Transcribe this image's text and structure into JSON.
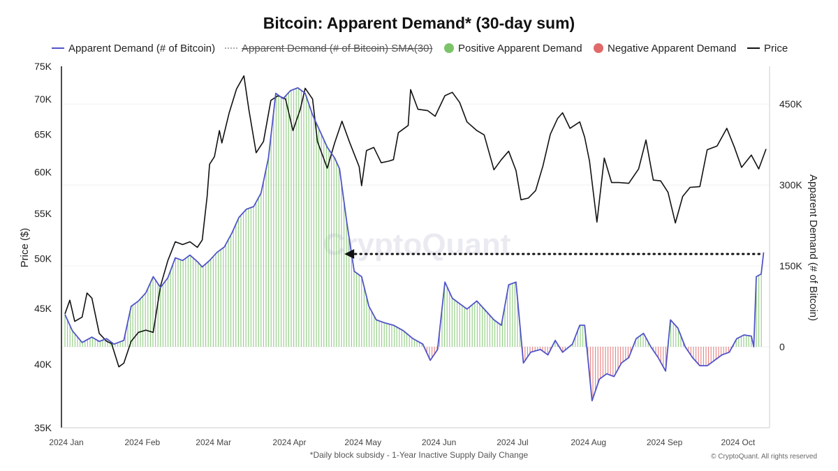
{
  "title": "Bitcoin: Apparent Demand* (30-day sum)",
  "legend": [
    {
      "label": "Apparent Demand (# of Bitcoin)",
      "kind": "line",
      "color": "#5154c8",
      "struck": false
    },
    {
      "label": "Apparent Demand (# of Bitcoin)  SMA(30)",
      "kind": "dashed",
      "color": "#aaaaaa",
      "struck": true
    },
    {
      "label": "Positive Apparent Demand",
      "kind": "dot",
      "color": "#7bc46a",
      "struck": false
    },
    {
      "label": "Negative Apparent Demand",
      "kind": "dot",
      "color": "#e06a6a",
      "struck": false
    },
    {
      "label": "Price",
      "kind": "line",
      "color": "#111111",
      "struck": false
    }
  ],
  "footnote": "*Daily block subsidy - 1-Year Inactive Supply Daily Change",
  "copyright": "© CryptoQuant. All rights reserved",
  "watermark": "CryptoQuant",
  "chart_data": {
    "type": "line",
    "title": "Bitcoin: Apparent Demand* (30-day sum)",
    "xlabel": "",
    "ylabel_left": "Price ($)",
    "ylabel_right": "Apparent Demand (# of Bitcoin)",
    "x_ticks": [
      "2024 Jan",
      "2024 Feb",
      "2024 Mar",
      "2024 Apr",
      "2024 May",
      "2024 Jun",
      "2024 Jul",
      "2024 Aug",
      "2024 Sep",
      "2024 Oct"
    ],
    "x_tick_dates": [
      "2024-01-01",
      "2024-02-01",
      "2024-03-01",
      "2024-04-01",
      "2024-05-01",
      "2024-06-01",
      "2024-07-01",
      "2024-08-01",
      "2024-09-01",
      "2024-10-01"
    ],
    "left_axis": {
      "scale": "log",
      "range": [
        35000,
        75000
      ],
      "tick_values": [
        35000,
        40000,
        45000,
        50000,
        55000,
        60000,
        65000,
        70000,
        75000
      ],
      "tick_labels": [
        "35K",
        "40K",
        "45K",
        "50K",
        "55K",
        "60K",
        "65K",
        "70K",
        "75K"
      ]
    },
    "right_axis": {
      "scale": "linear",
      "range": [
        -150000,
        520000
      ],
      "tick_values": [
        0,
        150000,
        300000,
        450000
      ],
      "tick_labels": [
        "0",
        "150K",
        "300K",
        "450K"
      ]
    },
    "grid": true,
    "legend_position": "top",
    "annotation": {
      "type": "dotted-arrow",
      "from": "2024-10-12",
      "to": "2024-04-24",
      "y_right": 172000
    },
    "series": [
      {
        "name": "Price",
        "axis": "left",
        "color": "#111111",
        "points": [
          [
            "2024-01-01",
            44500
          ],
          [
            "2024-01-03",
            45800
          ],
          [
            "2024-01-05",
            43800
          ],
          [
            "2024-01-08",
            44200
          ],
          [
            "2024-01-10",
            46500
          ],
          [
            "2024-01-12",
            46000
          ],
          [
            "2024-01-15",
            42700
          ],
          [
            "2024-01-18",
            42000
          ],
          [
            "2024-01-20",
            41800
          ],
          [
            "2024-01-23",
            39800
          ],
          [
            "2024-01-25",
            40100
          ],
          [
            "2024-01-28",
            42000
          ],
          [
            "2024-01-31",
            42800
          ],
          [
            "2024-02-03",
            43000
          ],
          [
            "2024-02-06",
            42800
          ],
          [
            "2024-02-09",
            47200
          ],
          [
            "2024-02-12",
            49800
          ],
          [
            "2024-02-15",
            51800
          ],
          [
            "2024-02-18",
            51500
          ],
          [
            "2024-02-21",
            51800
          ],
          [
            "2024-02-24",
            51200
          ],
          [
            "2024-02-26",
            52000
          ],
          [
            "2024-02-28",
            57000
          ],
          [
            "2024-02-29",
            61000
          ],
          [
            "2024-03-02",
            62000
          ],
          [
            "2024-03-04",
            65500
          ],
          [
            "2024-03-05",
            63800
          ],
          [
            "2024-03-08",
            68000
          ],
          [
            "2024-03-11",
            71500
          ],
          [
            "2024-03-14",
            73500
          ],
          [
            "2024-03-16",
            68500
          ],
          [
            "2024-03-19",
            62500
          ],
          [
            "2024-03-22",
            64000
          ],
          [
            "2024-03-25",
            69800
          ],
          [
            "2024-03-28",
            70500
          ],
          [
            "2024-03-31",
            70000
          ],
          [
            "2024-04-03",
            65500
          ],
          [
            "2024-04-06",
            68500
          ],
          [
            "2024-04-08",
            71600
          ],
          [
            "2024-04-11",
            70000
          ],
          [
            "2024-04-13",
            64000
          ],
          [
            "2024-04-17",
            60500
          ],
          [
            "2024-04-20",
            63800
          ],
          [
            "2024-04-23",
            66800
          ],
          [
            "2024-04-26",
            64000
          ],
          [
            "2024-04-30",
            60700
          ],
          [
            "2024-05-01",
            58300
          ],
          [
            "2024-05-03",
            62800
          ],
          [
            "2024-05-06",
            63200
          ],
          [
            "2024-05-09",
            61200
          ],
          [
            "2024-05-12",
            61400
          ],
          [
            "2024-05-14",
            61600
          ],
          [
            "2024-05-16",
            65200
          ],
          [
            "2024-05-20",
            66200
          ],
          [
            "2024-05-21",
            71400
          ],
          [
            "2024-05-24",
            68500
          ],
          [
            "2024-05-28",
            68300
          ],
          [
            "2024-05-31",
            67500
          ],
          [
            "2024-06-04",
            70500
          ],
          [
            "2024-06-07",
            71000
          ],
          [
            "2024-06-10",
            69500
          ],
          [
            "2024-06-13",
            66700
          ],
          [
            "2024-06-17",
            65500
          ],
          [
            "2024-06-20",
            64900
          ],
          [
            "2024-06-24",
            60300
          ],
          [
            "2024-06-27",
            61600
          ],
          [
            "2024-06-30",
            62700
          ],
          [
            "2024-07-03",
            60200
          ],
          [
            "2024-07-05",
            56600
          ],
          [
            "2024-07-08",
            56800
          ],
          [
            "2024-07-11",
            57700
          ],
          [
            "2024-07-14",
            60800
          ],
          [
            "2024-07-17",
            65000
          ],
          [
            "2024-07-20",
            67200
          ],
          [
            "2024-07-22",
            68000
          ],
          [
            "2024-07-25",
            65800
          ],
          [
            "2024-07-29",
            66700
          ],
          [
            "2024-07-31",
            64600
          ],
          [
            "2024-08-02",
            61400
          ],
          [
            "2024-08-05",
            54000
          ],
          [
            "2024-08-08",
            61800
          ],
          [
            "2024-08-11",
            58700
          ],
          [
            "2024-08-14",
            58700
          ],
          [
            "2024-08-18",
            58600
          ],
          [
            "2024-08-22",
            60400
          ],
          [
            "2024-08-25",
            64200
          ],
          [
            "2024-08-28",
            59000
          ],
          [
            "2024-08-31",
            58900
          ],
          [
            "2024-09-03",
            57500
          ],
          [
            "2024-09-06",
            53900
          ],
          [
            "2024-09-09",
            57000
          ],
          [
            "2024-09-12",
            58100
          ],
          [
            "2024-09-16",
            58200
          ],
          [
            "2024-09-19",
            62900
          ],
          [
            "2024-09-23",
            63400
          ],
          [
            "2024-09-27",
            65800
          ],
          [
            "2024-09-30",
            63300
          ],
          [
            "2024-10-03",
            60600
          ],
          [
            "2024-10-07",
            62200
          ],
          [
            "2024-10-10",
            60400
          ],
          [
            "2024-10-13",
            63000
          ]
        ]
      },
      {
        "name": "Apparent Demand (# of Bitcoin)",
        "axis": "right",
        "color": "#5154c8",
        "points": [
          [
            "2024-01-01",
            60000
          ],
          [
            "2024-01-04",
            30000
          ],
          [
            "2024-01-08",
            8000
          ],
          [
            "2024-01-12",
            18000
          ],
          [
            "2024-01-15",
            10000
          ],
          [
            "2024-01-18",
            15000
          ],
          [
            "2024-01-21",
            5000
          ],
          [
            "2024-01-25",
            12000
          ],
          [
            "2024-01-28",
            75000
          ],
          [
            "2024-01-31",
            85000
          ],
          [
            "2024-02-03",
            100000
          ],
          [
            "2024-02-06",
            130000
          ],
          [
            "2024-02-09",
            110000
          ],
          [
            "2024-02-12",
            128000
          ],
          [
            "2024-02-15",
            165000
          ],
          [
            "2024-02-18",
            160000
          ],
          [
            "2024-02-21",
            170000
          ],
          [
            "2024-02-24",
            158000
          ],
          [
            "2024-02-26",
            148000
          ],
          [
            "2024-02-29",
            160000
          ],
          [
            "2024-03-03",
            175000
          ],
          [
            "2024-03-06",
            185000
          ],
          [
            "2024-03-09",
            210000
          ],
          [
            "2024-03-12",
            240000
          ],
          [
            "2024-03-15",
            255000
          ],
          [
            "2024-03-18",
            260000
          ],
          [
            "2024-03-21",
            285000
          ],
          [
            "2024-03-24",
            350000
          ],
          [
            "2024-03-27",
            470000
          ],
          [
            "2024-03-30",
            460000
          ],
          [
            "2024-04-02",
            475000
          ],
          [
            "2024-04-05",
            480000
          ],
          [
            "2024-04-08",
            470000
          ],
          [
            "2024-04-11",
            430000
          ],
          [
            "2024-04-14",
            400000
          ],
          [
            "2024-04-17",
            370000
          ],
          [
            "2024-04-20",
            350000
          ],
          [
            "2024-04-22",
            330000
          ],
          [
            "2024-04-25",
            230000
          ],
          [
            "2024-04-28",
            140000
          ],
          [
            "2024-05-01",
            130000
          ],
          [
            "2024-05-04",
            75000
          ],
          [
            "2024-05-07",
            50000
          ],
          [
            "2024-05-10",
            45000
          ],
          [
            "2024-05-14",
            40000
          ],
          [
            "2024-05-18",
            30000
          ],
          [
            "2024-05-22",
            15000
          ],
          [
            "2024-05-26",
            5000
          ],
          [
            "2024-05-29",
            -25000
          ],
          [
            "2024-06-01",
            -5000
          ],
          [
            "2024-06-04",
            120000
          ],
          [
            "2024-06-07",
            90000
          ],
          [
            "2024-06-10",
            80000
          ],
          [
            "2024-06-13",
            70000
          ],
          [
            "2024-06-17",
            85000
          ],
          [
            "2024-06-20",
            70000
          ],
          [
            "2024-06-24",
            50000
          ],
          [
            "2024-06-27",
            40000
          ],
          [
            "2024-06-30",
            115000
          ],
          [
            "2024-07-03",
            120000
          ],
          [
            "2024-07-06",
            -30000
          ],
          [
            "2024-07-09",
            -10000
          ],
          [
            "2024-07-13",
            -5000
          ],
          [
            "2024-07-16",
            -15000
          ],
          [
            "2024-07-19",
            12000
          ],
          [
            "2024-07-22",
            -10000
          ],
          [
            "2024-07-26",
            5000
          ],
          [
            "2024-07-29",
            40000
          ],
          [
            "2024-07-31",
            40000
          ],
          [
            "2024-08-03",
            -100000
          ],
          [
            "2024-08-06",
            -60000
          ],
          [
            "2024-08-09",
            -50000
          ],
          [
            "2024-08-12",
            -55000
          ],
          [
            "2024-08-15",
            -30000
          ],
          [
            "2024-08-18",
            -20000
          ],
          [
            "2024-08-21",
            15000
          ],
          [
            "2024-08-24",
            25000
          ],
          [
            "2024-08-27",
            0
          ],
          [
            "2024-08-30",
            -20000
          ],
          [
            "2024-09-02",
            -45000
          ],
          [
            "2024-09-04",
            50000
          ],
          [
            "2024-09-07",
            35000
          ],
          [
            "2024-09-10",
            0
          ],
          [
            "2024-09-13",
            -20000
          ],
          [
            "2024-09-16",
            -35000
          ],
          [
            "2024-09-19",
            -35000
          ],
          [
            "2024-09-22",
            -25000
          ],
          [
            "2024-09-25",
            -15000
          ],
          [
            "2024-09-28",
            -10000
          ],
          [
            "2024-10-01",
            15000
          ],
          [
            "2024-10-04",
            22000
          ],
          [
            "2024-10-07",
            20000
          ],
          [
            "2024-10-08",
            0
          ],
          [
            "2024-10-09",
            130000
          ],
          [
            "2024-10-11",
            135000
          ],
          [
            "2024-10-12",
            175000
          ]
        ]
      }
    ]
  }
}
